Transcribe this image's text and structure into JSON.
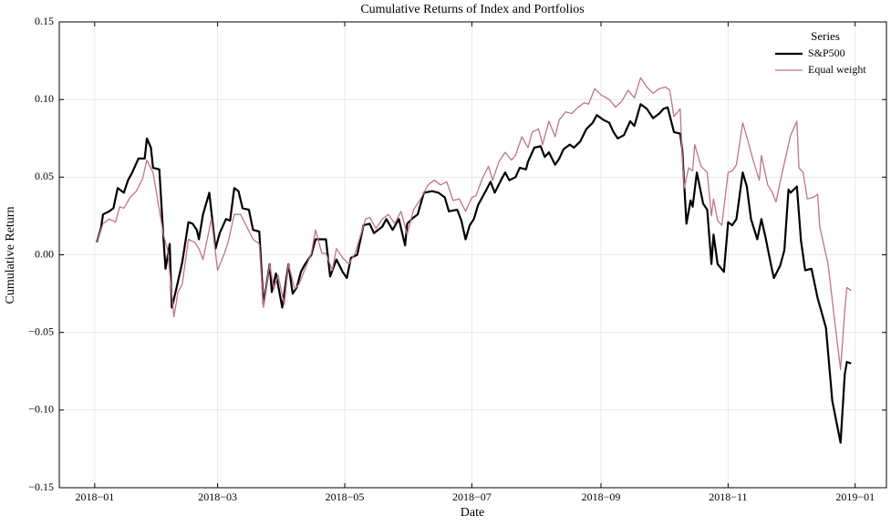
{
  "chart_data": {
    "type": "line",
    "title": "Cumulative Returns of Index and Portfolios",
    "xlabel": "Date",
    "ylabel": "Cumulative Return",
    "legend_title": "Series",
    "legend": "upper right",
    "grid": true,
    "xlim": [
      -17,
      380
    ],
    "xticks": [
      {
        "value": 0,
        "label": "2018−01"
      },
      {
        "value": 59,
        "label": "2018−03"
      },
      {
        "value": 120,
        "label": "2018−05"
      },
      {
        "value": 181,
        "label": "2018−07"
      },
      {
        "value": 243,
        "label": "2018−09"
      },
      {
        "value": 304,
        "label": "2018−11"
      },
      {
        "value": 365,
        "label": "2019−01"
      }
    ],
    "ylim": [
      -0.15,
      0.15
    ],
    "yticks": [
      {
        "value": -0.15,
        "label": "−0.15"
      },
      {
        "value": -0.1,
        "label": "−0.10"
      },
      {
        "value": -0.05,
        "label": "−0.05"
      },
      {
        "value": 0,
        "label": "0.00"
      },
      {
        "value": 0.05,
        "label": "0.05"
      },
      {
        "value": 0.1,
        "label": "0.10"
      },
      {
        "value": 0.15,
        "label": "0.15"
      }
    ],
    "series": [
      {
        "name": "S&P500",
        "color": "#000000",
        "width": 2.2,
        "x": [
          1,
          3,
          4,
          7,
          9,
          11,
          14,
          16,
          18,
          21,
          24,
          25,
          27,
          28,
          31,
          33,
          34,
          36,
          37,
          39,
          42,
          45,
          47,
          49,
          50,
          52,
          55,
          58,
          60,
          63,
          65,
          67,
          69,
          71,
          74,
          76,
          79,
          81,
          84,
          85,
          87,
          90,
          93,
          95,
          97,
          99,
          101,
          104,
          106,
          108,
          111,
          113,
          116,
          119,
          121,
          123,
          126,
          129,
          132,
          134,
          138,
          140,
          143,
          146,
          149,
          150,
          153,
          155,
          158,
          162,
          165,
          168,
          170,
          174,
          176,
          178,
          180,
          182,
          184,
          188,
          190,
          192,
          195,
          197,
          199,
          202,
          204,
          207,
          208,
          211,
          214,
          216,
          218,
          221,
          223,
          225,
          228,
          230,
          233,
          236,
          239,
          241,
          244,
          247,
          249,
          251,
          254,
          257,
          259,
          262,
          265,
          268,
          271,
          273,
          275,
          278,
          281,
          282,
          284,
          286,
          287,
          289,
          292,
          294,
          296,
          297,
          299,
          302,
          304,
          306,
          308,
          311,
          313,
          315,
          318,
          320,
          322,
          325,
          326,
          329,
          331,
          333,
          334,
          337,
          339,
          341,
          344,
          347,
          351,
          354,
          358,
          360,
          361,
          363
        ],
        "values": [
          0.008,
          0.017,
          0.026,
          0.028,
          0.03,
          0.043,
          0.04,
          0.048,
          0.053,
          0.062,
          0.062,
          0.075,
          0.069,
          0.056,
          0.055,
          0.011,
          -0.009,
          0.007,
          -0.034,
          -0.023,
          -0.005,
          0.021,
          0.02,
          0.016,
          0.01,
          0.026,
          0.04,
          0.004,
          0.014,
          0.023,
          0.022,
          0.043,
          0.041,
          0.03,
          0.029,
          0.016,
          0.015,
          -0.032,
          -0.006,
          -0.024,
          -0.012,
          -0.034,
          -0.006,
          -0.025,
          -0.021,
          -0.011,
          -0.006,
          0,
          0.01,
          0.01,
          0.01,
          -0.014,
          -0.003,
          -0.011,
          -0.015,
          -0.002,
          0,
          0.019,
          0.02,
          0.014,
          0.018,
          0.023,
          0.016,
          0.023,
          0.006,
          0.02,
          0.024,
          0.026,
          0.04,
          0.041,
          0.04,
          0.037,
          0.028,
          0.029,
          0.022,
          0.01,
          0.019,
          0.023,
          0.032,
          0.042,
          0.047,
          0.04,
          0.048,
          0.053,
          0.048,
          0.05,
          0.056,
          0.055,
          0.06,
          0.069,
          0.07,
          0.063,
          0.066,
          0.058,
          0.062,
          0.068,
          0.071,
          0.069,
          0.073,
          0.081,
          0.085,
          0.09,
          0.087,
          0.085,
          0.079,
          0.075,
          0.077,
          0.086,
          0.083,
          0.097,
          0.094,
          0.088,
          0.091,
          0.094,
          0.095,
          0.079,
          0.078,
          0.068,
          0.02,
          0.035,
          0.031,
          0.053,
          0.033,
          0.029,
          -0.006,
          0.013,
          -0.006,
          -0.011,
          0.021,
          0.019,
          0.023,
          0.053,
          0.044,
          0.023,
          0.01,
          0.023,
          0.011,
          -0.009,
          -0.015,
          -0.007,
          0.003,
          0.042,
          0.04,
          0.044,
          0.009,
          -0.01,
          -0.009,
          -0.028,
          -0.047,
          -0.094,
          -0.121,
          -0.077,
          -0.069,
          -0.07
        ]
      },
      {
        "name": "Equal weight",
        "color": "#c0728f",
        "width": 1.3,
        "x": [
          1,
          4,
          7,
          10,
          12,
          14,
          17,
          20,
          23,
          25,
          28,
          29,
          33,
          35,
          38,
          40,
          42,
          45,
          48,
          50,
          52,
          54,
          56,
          59,
          62,
          64,
          67,
          70,
          73,
          76,
          79,
          81,
          84,
          86,
          88,
          91,
          93,
          96,
          98,
          101,
          104,
          106,
          109,
          111,
          114,
          116,
          119,
          122,
          125,
          130,
          132,
          135,
          138,
          141,
          144,
          147,
          150,
          153,
          156,
          160,
          163,
          166,
          169,
          172,
          175,
          178,
          181,
          183,
          186,
          189,
          191,
          194,
          197,
          200,
          202,
          205,
          208,
          210,
          213,
          215,
          218,
          221,
          223,
          226,
          229,
          232,
          235,
          237,
          240,
          243,
          247,
          250,
          253,
          256,
          259,
          262,
          265,
          268,
          271,
          274,
          276,
          278,
          281,
          282,
          283,
          285,
          287,
          288,
          291,
          294,
          296,
          297,
          299,
          301,
          304,
          306,
          308,
          311,
          313,
          316,
          319,
          320,
          323,
          325,
          327,
          329,
          332,
          334,
          337,
          338,
          340,
          342,
          345,
          347,
          348,
          352,
          355,
          358,
          360,
          361,
          363
        ],
        "values": [
          0.008,
          0.02,
          0.023,
          0.021,
          0.031,
          0.03,
          0.037,
          0.041,
          0.049,
          0.061,
          0.053,
          0.045,
          0.013,
          0.003,
          -0.04,
          -0.024,
          -0.019,
          0.01,
          0.008,
          0.004,
          -0.003,
          0.01,
          0.023,
          -0.01,
          0,
          0.008,
          0.026,
          0.026,
          0.018,
          0.01,
          0.007,
          -0.034,
          -0.006,
          -0.022,
          -0.013,
          -0.032,
          -0.006,
          -0.022,
          -0.019,
          -0.009,
          0.001,
          0.016,
          0.001,
          0.001,
          -0.01,
          0.004,
          -0.002,
          -0.006,
          0.001,
          0.023,
          0.024,
          0.017,
          0.023,
          0.026,
          0.02,
          0.028,
          0.013,
          0.029,
          0.035,
          0.045,
          0.048,
          0.045,
          0.047,
          0.035,
          0.036,
          0.028,
          0.037,
          0.038,
          0.049,
          0.057,
          0.048,
          0.06,
          0.066,
          0.061,
          0.064,
          0.076,
          0.069,
          0.079,
          0.081,
          0.071,
          0.086,
          0.076,
          0.087,
          0.092,
          0.091,
          0.095,
          0.098,
          0.097,
          0.107,
          0.103,
          0.1,
          0.095,
          0.099,
          0.106,
          0.101,
          0.114,
          0.108,
          0.104,
          0.107,
          0.108,
          0.106,
          0.089,
          0.094,
          0.064,
          0.043,
          0.056,
          0.054,
          0.071,
          0.057,
          0.053,
          0.025,
          0.036,
          0.022,
          0.019,
          0.053,
          0.054,
          0.058,
          0.085,
          0.076,
          0.061,
          0.048,
          0.064,
          0.045,
          0.041,
          0.034,
          0.047,
          0.065,
          0.077,
          0.086,
          0.056,
          0.053,
          0.036,
          0.037,
          0.039,
          0.018,
          -0.006,
          -0.041,
          -0.074,
          -0.036,
          -0.021,
          -0.023
        ]
      }
    ]
  }
}
